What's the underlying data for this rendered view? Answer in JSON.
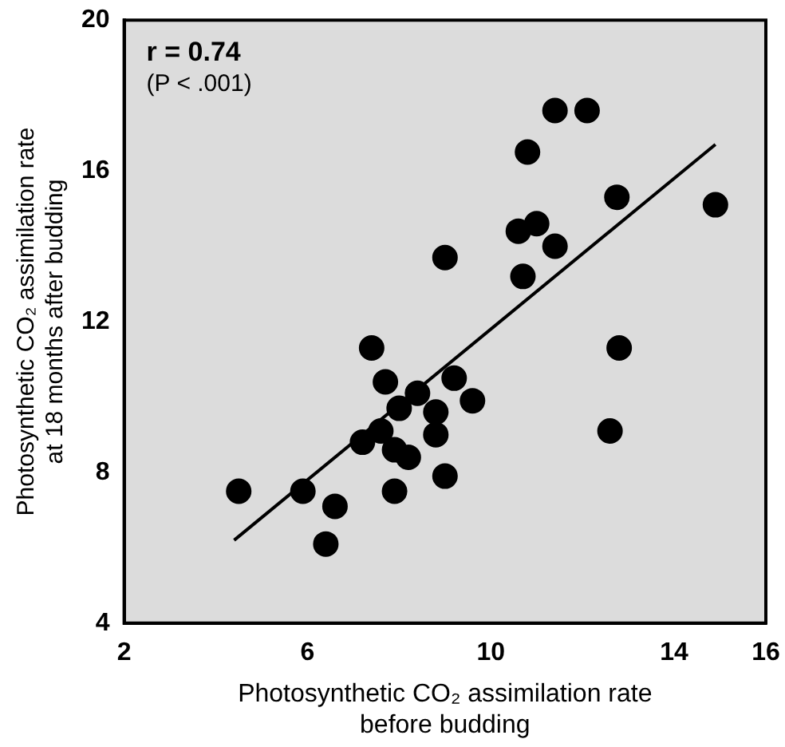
{
  "chart_data": {
    "type": "scatter",
    "xlabel": "Photosynthetic CO₂ assimilation rate\nbefore budding",
    "ylabel": "Photosynthetic CO₂ assimilation rate\nat 18 months after budding",
    "annotations": [
      "r = 0.74",
      "(P < .001)"
    ],
    "xlim": [
      2,
      16
    ],
    "xticks": [
      2,
      6,
      10,
      14,
      16
    ],
    "ylim": [
      4,
      20
    ],
    "yticks": [
      4,
      8,
      12,
      16,
      20
    ],
    "grid": false,
    "legend": false,
    "marker": "circle",
    "series": [
      {
        "color": "#000000",
        "x": [
          11.4,
          12.1,
          10.8,
          12.75,
          14.9,
          11.0,
          10.6,
          11.4,
          9.0,
          10.7,
          7.4,
          12.8,
          7.7,
          9.2,
          8.4,
          9.6,
          8.0,
          8.8,
          8.8,
          7.6,
          7.2,
          7.9,
          8.2,
          9.0,
          4.5,
          5.9,
          7.9,
          6.6,
          6.4,
          12.6
        ],
        "values": [
          17.6,
          17.6,
          16.5,
          15.3,
          15.1,
          14.6,
          14.4,
          14.0,
          13.7,
          13.2,
          11.3,
          11.3,
          10.4,
          10.5,
          10.1,
          9.9,
          9.7,
          9.6,
          9.0,
          9.1,
          8.8,
          8.6,
          8.4,
          7.9,
          7.5,
          7.5,
          7.5,
          7.1,
          6.1,
          9.1
        ]
      },
      {
        "type": "line",
        "color": "#000000",
        "marker": "none",
        "x": [
          4.4,
          14.9
        ],
        "values": [
          6.2,
          16.7
        ]
      }
    ]
  }
}
